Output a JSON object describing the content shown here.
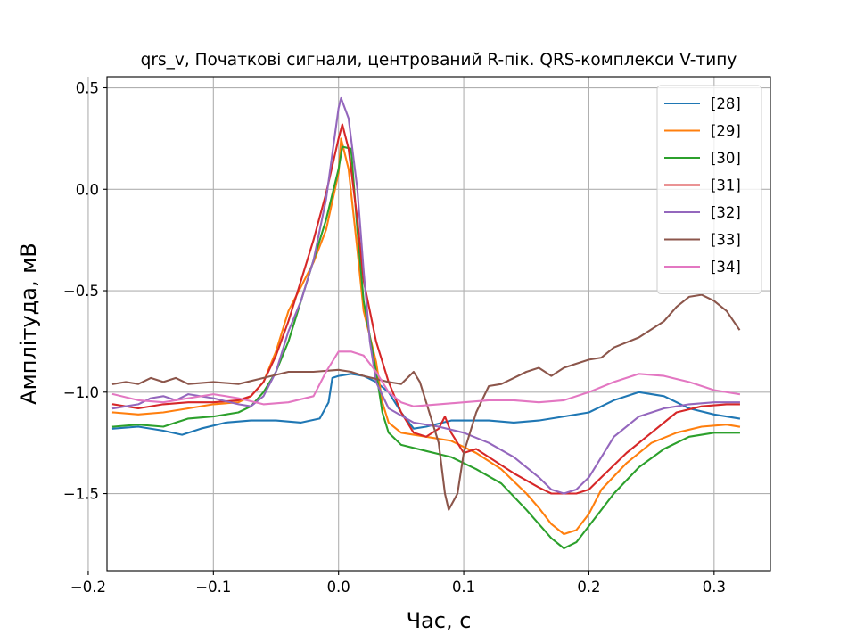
{
  "chart_data": {
    "type": "line",
    "title": "qrs_v, Початкові сигнали, центрований R-пік. QRS-комплекси V-типу",
    "xlabel": "Час, с",
    "ylabel": "Амплітуда, мВ",
    "xlim": [
      -0.185,
      0.345
    ],
    "ylim": [
      -1.88,
      0.555
    ],
    "xticks": [
      -0.2,
      -0.1,
      0.0,
      0.1,
      0.2,
      0.3
    ],
    "xtick_labels": [
      "−0.2",
      "−0.1",
      "0.0",
      "0.1",
      "0.2",
      "0.3"
    ],
    "yticks": [
      -1.5,
      -1.0,
      -0.5,
      0.0,
      0.5
    ],
    "ytick_labels": [
      "−1.5",
      "−1.0",
      "−0.5",
      "0.0",
      "0.5"
    ],
    "grid": true,
    "legend_position": "top-right",
    "series": [
      {
        "name": "[28]",
        "color": "#1f77b4",
        "points": [
          [
            -0.18,
            -1.18
          ],
          [
            -0.16,
            -1.17
          ],
          [
            -0.14,
            -1.19
          ],
          [
            -0.125,
            -1.21
          ],
          [
            -0.11,
            -1.18
          ],
          [
            -0.09,
            -1.15
          ],
          [
            -0.07,
            -1.14
          ],
          [
            -0.05,
            -1.14
          ],
          [
            -0.03,
            -1.15
          ],
          [
            -0.015,
            -1.13
          ],
          [
            -0.008,
            -1.05
          ],
          [
            -0.005,
            -0.93
          ],
          [
            0.0,
            -0.92
          ],
          [
            0.01,
            -0.91
          ],
          [
            0.02,
            -0.92
          ],
          [
            0.03,
            -0.95
          ],
          [
            0.04,
            -1.0
          ],
          [
            0.05,
            -1.1
          ],
          [
            0.06,
            -1.18
          ],
          [
            0.07,
            -1.17
          ],
          [
            0.09,
            -1.14
          ],
          [
            0.12,
            -1.14
          ],
          [
            0.14,
            -1.15
          ],
          [
            0.16,
            -1.14
          ],
          [
            0.18,
            -1.12
          ],
          [
            0.2,
            -1.1
          ],
          [
            0.22,
            -1.04
          ],
          [
            0.24,
            -1.0
          ],
          [
            0.26,
            -1.02
          ],
          [
            0.28,
            -1.08
          ],
          [
            0.3,
            -1.11
          ],
          [
            0.32,
            -1.13
          ]
        ]
      },
      {
        "name": "[29]",
        "color": "#ff7f0e",
        "points": [
          [
            -0.18,
            -1.1
          ],
          [
            -0.16,
            -1.11
          ],
          [
            -0.14,
            -1.1
          ],
          [
            -0.12,
            -1.08
          ],
          [
            -0.1,
            -1.06
          ],
          [
            -0.08,
            -1.05
          ],
          [
            -0.07,
            -1.02
          ],
          [
            -0.06,
            -0.95
          ],
          [
            -0.05,
            -0.8
          ],
          [
            -0.04,
            -0.6
          ],
          [
            -0.03,
            -0.48
          ],
          [
            -0.02,
            -0.36
          ],
          [
            -0.01,
            -0.2
          ],
          [
            0.0,
            0.08
          ],
          [
            0.002,
            0.25
          ],
          [
            0.008,
            0.1
          ],
          [
            0.015,
            -0.3
          ],
          [
            0.02,
            -0.6
          ],
          [
            0.03,
            -0.85
          ],
          [
            0.035,
            -1.05
          ],
          [
            0.04,
            -1.15
          ],
          [
            0.05,
            -1.2
          ],
          [
            0.07,
            -1.22
          ],
          [
            0.09,
            -1.24
          ],
          [
            0.11,
            -1.3
          ],
          [
            0.13,
            -1.38
          ],
          [
            0.15,
            -1.5
          ],
          [
            0.16,
            -1.57
          ],
          [
            0.17,
            -1.65
          ],
          [
            0.18,
            -1.7
          ],
          [
            0.19,
            -1.68
          ],
          [
            0.2,
            -1.6
          ],
          [
            0.21,
            -1.48
          ],
          [
            0.23,
            -1.35
          ],
          [
            0.25,
            -1.25
          ],
          [
            0.27,
            -1.2
          ],
          [
            0.29,
            -1.17
          ],
          [
            0.31,
            -1.16
          ],
          [
            0.32,
            -1.17
          ]
        ]
      },
      {
        "name": "[30]",
        "color": "#2ca02c",
        "points": [
          [
            -0.18,
            -1.17
          ],
          [
            -0.16,
            -1.16
          ],
          [
            -0.14,
            -1.17
          ],
          [
            -0.13,
            -1.15
          ],
          [
            -0.12,
            -1.13
          ],
          [
            -0.1,
            -1.12
          ],
          [
            -0.08,
            -1.1
          ],
          [
            -0.07,
            -1.07
          ],
          [
            -0.06,
            -1.0
          ],
          [
            -0.05,
            -0.9
          ],
          [
            -0.04,
            -0.75
          ],
          [
            -0.03,
            -0.55
          ],
          [
            -0.02,
            -0.35
          ],
          [
            -0.01,
            -0.15
          ],
          [
            0.0,
            0.1
          ],
          [
            0.003,
            0.21
          ],
          [
            0.01,
            0.2
          ],
          [
            0.015,
            -0.2
          ],
          [
            0.02,
            -0.55
          ],
          [
            0.03,
            -0.9
          ],
          [
            0.035,
            -1.1
          ],
          [
            0.04,
            -1.2
          ],
          [
            0.05,
            -1.26
          ],
          [
            0.07,
            -1.29
          ],
          [
            0.09,
            -1.32
          ],
          [
            0.11,
            -1.38
          ],
          [
            0.13,
            -1.45
          ],
          [
            0.15,
            -1.58
          ],
          [
            0.17,
            -1.72
          ],
          [
            0.18,
            -1.77
          ],
          [
            0.19,
            -1.74
          ],
          [
            0.2,
            -1.66
          ],
          [
            0.22,
            -1.5
          ],
          [
            0.24,
            -1.37
          ],
          [
            0.26,
            -1.28
          ],
          [
            0.28,
            -1.22
          ],
          [
            0.3,
            -1.2
          ],
          [
            0.32,
            -1.2
          ]
        ]
      },
      {
        "name": "[31]",
        "color": "#d62728",
        "points": [
          [
            -0.18,
            -1.06
          ],
          [
            -0.16,
            -1.08
          ],
          [
            -0.14,
            -1.06
          ],
          [
            -0.12,
            -1.05
          ],
          [
            -0.1,
            -1.05
          ],
          [
            -0.08,
            -1.04
          ],
          [
            -0.07,
            -1.02
          ],
          [
            -0.06,
            -0.95
          ],
          [
            -0.05,
            -0.82
          ],
          [
            -0.04,
            -0.65
          ],
          [
            -0.03,
            -0.45
          ],
          [
            -0.02,
            -0.25
          ],
          [
            -0.01,
            -0.02
          ],
          [
            0.0,
            0.25
          ],
          [
            0.003,
            0.32
          ],
          [
            0.008,
            0.2
          ],
          [
            0.015,
            -0.15
          ],
          [
            0.02,
            -0.45
          ],
          [
            0.03,
            -0.75
          ],
          [
            0.04,
            -0.95
          ],
          [
            0.05,
            -1.1
          ],
          [
            0.06,
            -1.2
          ],
          [
            0.07,
            -1.22
          ],
          [
            0.08,
            -1.18
          ],
          [
            0.085,
            -1.12
          ],
          [
            0.09,
            -1.2
          ],
          [
            0.1,
            -1.3
          ],
          [
            0.11,
            -1.28
          ],
          [
            0.12,
            -1.32
          ],
          [
            0.14,
            -1.4
          ],
          [
            0.16,
            -1.47
          ],
          [
            0.17,
            -1.5
          ],
          [
            0.19,
            -1.5
          ],
          [
            0.2,
            -1.48
          ],
          [
            0.21,
            -1.42
          ],
          [
            0.23,
            -1.3
          ],
          [
            0.25,
            -1.2
          ],
          [
            0.27,
            -1.1
          ],
          [
            0.29,
            -1.07
          ],
          [
            0.31,
            -1.06
          ],
          [
            0.32,
            -1.06
          ]
        ]
      },
      {
        "name": "[32]",
        "color": "#9467bd",
        "points": [
          [
            -0.18,
            -1.08
          ],
          [
            -0.17,
            -1.07
          ],
          [
            -0.16,
            -1.06
          ],
          [
            -0.15,
            -1.03
          ],
          [
            -0.14,
            -1.02
          ],
          [
            -0.13,
            -1.04
          ],
          [
            -0.12,
            -1.01
          ],
          [
            -0.1,
            -1.03
          ],
          [
            -0.08,
            -1.06
          ],
          [
            -0.07,
            -1.07
          ],
          [
            -0.06,
            -1.02
          ],
          [
            -0.05,
            -0.9
          ],
          [
            -0.04,
            -0.7
          ],
          [
            -0.03,
            -0.55
          ],
          [
            -0.02,
            -0.35
          ],
          [
            -0.01,
            -0.05
          ],
          [
            0.0,
            0.4
          ],
          [
            0.002,
            0.45
          ],
          [
            0.008,
            0.35
          ],
          [
            0.015,
            0.0
          ],
          [
            0.02,
            -0.4
          ],
          [
            0.025,
            -0.75
          ],
          [
            0.03,
            -0.95
          ],
          [
            0.04,
            -1.08
          ],
          [
            0.06,
            -1.15
          ],
          [
            0.08,
            -1.17
          ],
          [
            0.1,
            -1.2
          ],
          [
            0.12,
            -1.25
          ],
          [
            0.14,
            -1.32
          ],
          [
            0.16,
            -1.42
          ],
          [
            0.17,
            -1.48
          ],
          [
            0.18,
            -1.5
          ],
          [
            0.19,
            -1.48
          ],
          [
            0.2,
            -1.42
          ],
          [
            0.21,
            -1.32
          ],
          [
            0.22,
            -1.22
          ],
          [
            0.24,
            -1.12
          ],
          [
            0.26,
            -1.08
          ],
          [
            0.28,
            -1.06
          ],
          [
            0.3,
            -1.05
          ],
          [
            0.32,
            -1.05
          ]
        ]
      },
      {
        "name": "[33]",
        "color": "#8c564b",
        "points": [
          [
            -0.18,
            -0.96
          ],
          [
            -0.17,
            -0.95
          ],
          [
            -0.16,
            -0.96
          ],
          [
            -0.15,
            -0.93
          ],
          [
            -0.14,
            -0.95
          ],
          [
            -0.13,
            -0.93
          ],
          [
            -0.12,
            -0.96
          ],
          [
            -0.1,
            -0.95
          ],
          [
            -0.08,
            -0.96
          ],
          [
            -0.06,
            -0.93
          ],
          [
            -0.04,
            -0.9
          ],
          [
            -0.02,
            -0.9
          ],
          [
            0.0,
            -0.89
          ],
          [
            0.01,
            -0.9
          ],
          [
            0.02,
            -0.92
          ],
          [
            0.04,
            -0.95
          ],
          [
            0.05,
            -0.96
          ],
          [
            0.06,
            -0.9
          ],
          [
            0.065,
            -0.95
          ],
          [
            0.07,
            -1.05
          ],
          [
            0.08,
            -1.25
          ],
          [
            0.085,
            -1.5
          ],
          [
            0.088,
            -1.58
          ],
          [
            0.095,
            -1.5
          ],
          [
            0.1,
            -1.3
          ],
          [
            0.11,
            -1.1
          ],
          [
            0.12,
            -0.97
          ],
          [
            0.13,
            -0.96
          ],
          [
            0.14,
            -0.93
          ],
          [
            0.15,
            -0.9
          ],
          [
            0.16,
            -0.88
          ],
          [
            0.17,
            -0.92
          ],
          [
            0.18,
            -0.88
          ],
          [
            0.19,
            -0.86
          ],
          [
            0.2,
            -0.84
          ],
          [
            0.21,
            -0.83
          ],
          [
            0.22,
            -0.78
          ],
          [
            0.24,
            -0.73
          ],
          [
            0.26,
            -0.65
          ],
          [
            0.27,
            -0.58
          ],
          [
            0.28,
            -0.53
          ],
          [
            0.29,
            -0.52
          ],
          [
            0.3,
            -0.55
          ],
          [
            0.31,
            -0.6
          ],
          [
            0.32,
            -0.69
          ]
        ]
      },
      {
        "name": "[34]",
        "color": "#e377c2",
        "points": [
          [
            -0.18,
            -1.01
          ],
          [
            -0.16,
            -1.04
          ],
          [
            -0.14,
            -1.05
          ],
          [
            -0.12,
            -1.03
          ],
          [
            -0.1,
            -1.01
          ],
          [
            -0.08,
            -1.03
          ],
          [
            -0.06,
            -1.06
          ],
          [
            -0.04,
            -1.05
          ],
          [
            -0.02,
            -1.02
          ],
          [
            -0.01,
            -0.9
          ],
          [
            0.0,
            -0.8
          ],
          [
            0.01,
            -0.8
          ],
          [
            0.02,
            -0.82
          ],
          [
            0.03,
            -0.9
          ],
          [
            0.04,
            -1.0
          ],
          [
            0.05,
            -1.05
          ],
          [
            0.06,
            -1.07
          ],
          [
            0.08,
            -1.06
          ],
          [
            0.1,
            -1.05
          ],
          [
            0.12,
            -1.04
          ],
          [
            0.14,
            -1.04
          ],
          [
            0.16,
            -1.05
          ],
          [
            0.18,
            -1.04
          ],
          [
            0.2,
            -1.0
          ],
          [
            0.22,
            -0.95
          ],
          [
            0.24,
            -0.91
          ],
          [
            0.26,
            -0.92
          ],
          [
            0.28,
            -0.95
          ],
          [
            0.3,
            -0.99
          ],
          [
            0.32,
            -1.01
          ]
        ]
      }
    ]
  }
}
